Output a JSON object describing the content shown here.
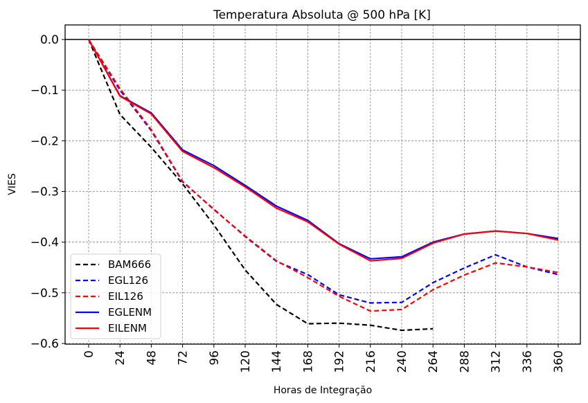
{
  "chart_data": {
    "type": "line",
    "title": "Temperatura Absoluta @ 500 hPa [K]",
    "xlabel": "Horas de Integração",
    "ylabel": "VIES",
    "xlim": [
      -20,
      380
    ],
    "ylim": [
      -0.603,
      0.028
    ],
    "grid": true,
    "legend_position": "lower-left",
    "x": [
      0,
      24,
      48,
      72,
      96,
      120,
      144,
      168,
      192,
      216,
      240,
      264,
      288,
      312,
      336,
      360
    ],
    "xticks": [
      "0",
      "24",
      "48",
      "72",
      "96",
      "120",
      "144",
      "168",
      "192",
      "216",
      "240",
      "264",
      "288",
      "312",
      "336",
      "360"
    ],
    "yticks": [
      {
        "value": 0.0,
        "label": "0.0"
      },
      {
        "value": -0.1,
        "label": "−0.1"
      },
      {
        "value": -0.2,
        "label": "−0.2"
      },
      {
        "value": -0.3,
        "label": "−0.3"
      },
      {
        "value": -0.4,
        "label": "−0.4"
      },
      {
        "value": -0.5,
        "label": "−0.5"
      },
      {
        "value": -0.6,
        "label": "−0.6"
      }
    ],
    "reference_line": 0.0,
    "series": [
      {
        "name": "BAM666",
        "color": "#000000",
        "dashed": true,
        "values": [
          0.0,
          -0.148,
          -0.213,
          -0.285,
          -0.366,
          -0.455,
          -0.523,
          -0.561,
          -0.56,
          -0.564,
          -0.574,
          -0.571,
          null,
          null,
          null,
          null
        ]
      },
      {
        "name": "EGL126",
        "color": "#0000ff",
        "dashed": true,
        "values": [
          0.0,
          -0.1,
          -0.18,
          -0.281,
          -0.335,
          -0.389,
          -0.438,
          -0.464,
          -0.504,
          -0.52,
          -0.519,
          -0.48,
          -0.451,
          -0.425,
          -0.449,
          -0.464
        ]
      },
      {
        "name": "EIL126",
        "color": "#ff0000",
        "dashed": true,
        "values": [
          0.0,
          -0.097,
          -0.178,
          -0.28,
          -0.336,
          -0.388,
          -0.437,
          -0.47,
          -0.507,
          -0.536,
          -0.533,
          -0.494,
          -0.465,
          -0.441,
          -0.449,
          -0.46
        ]
      },
      {
        "name": "EGLENM",
        "color": "#0000ff",
        "dashed": false,
        "values": [
          0.0,
          -0.111,
          -0.145,
          -0.218,
          -0.249,
          -0.288,
          -0.329,
          -0.357,
          -0.403,
          -0.433,
          -0.429,
          -0.4,
          -0.384,
          -0.378,
          -0.383,
          -0.393
        ]
      },
      {
        "name": "EILENM",
        "color": "#ff0000",
        "dashed": false,
        "values": [
          0.0,
          -0.112,
          -0.147,
          -0.221,
          -0.253,
          -0.291,
          -0.333,
          -0.36,
          -0.404,
          -0.437,
          -0.432,
          -0.402,
          -0.384,
          -0.378,
          -0.383,
          -0.396
        ]
      }
    ]
  }
}
